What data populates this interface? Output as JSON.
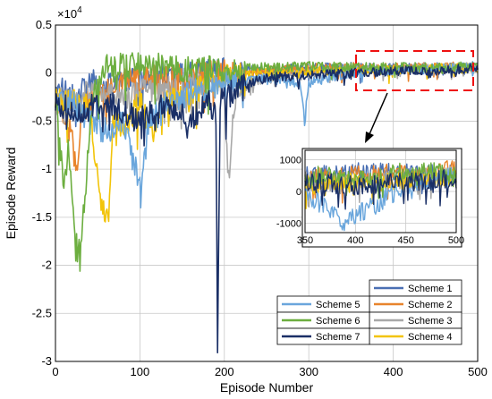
{
  "chart_data": [
    {
      "type": "line",
      "xlabel": "Episode Number",
      "ylabel": "Episode Reward",
      "y_multiplier": "×10",
      "y_multiplier_exp": "4",
      "xlim": [
        0,
        500
      ],
      "ylim": [
        -3,
        0.5
      ],
      "xticks": [
        0,
        100,
        200,
        300,
        400,
        500
      ],
      "yticks": [
        0.5,
        0,
        -0.5,
        -1,
        -1.5,
        -2,
        -2.5,
        -3
      ],
      "ytick_labels": [
        "0.5",
        "0",
        "-0.5",
        "-1",
        "-1.5",
        "-2",
        "-2.5",
        "-3"
      ],
      "grid": true,
      "legend_position": "bottom-right",
      "series": [
        {
          "name": "Scheme 1",
          "color": "#4a6fb3",
          "points": [
            [
              0,
              -0.3
            ],
            [
              8,
              -0.15
            ],
            [
              18,
              -0.25
            ],
            [
              30,
              -0.2
            ],
            [
              45,
              -0.1
            ],
            [
              60,
              -0.15
            ],
            [
              80,
              -0.05
            ],
            [
              100,
              -0.05
            ],
            [
              130,
              -0.02
            ],
            [
              160,
              0.0
            ],
            [
              180,
              0.02
            ],
            [
              200,
              0.03
            ],
            [
              250,
              0.04
            ],
            [
              300,
              0.05
            ],
            [
              350,
              0.06
            ],
            [
              400,
              0.05
            ],
            [
              450,
              0.06
            ],
            [
              500,
              0.07
            ]
          ]
        },
        {
          "name": "Scheme 2",
          "color": "#e8842c",
          "points": [
            [
              0,
              -0.2
            ],
            [
              10,
              -0.4
            ],
            [
              20,
              -0.7
            ],
            [
              25,
              -1.05
            ],
            [
              32,
              -0.4
            ],
            [
              45,
              -0.25
            ],
            [
              60,
              -0.2
            ],
            [
              80,
              -0.1
            ],
            [
              100,
              -0.05
            ],
            [
              130,
              -0.05
            ],
            [
              160,
              -0.02
            ],
            [
              200,
              0.0
            ],
            [
              250,
              0.03
            ],
            [
              300,
              0.05
            ],
            [
              350,
              0.06
            ],
            [
              400,
              0.05
            ],
            [
              450,
              0.07
            ],
            [
              500,
              0.06
            ]
          ]
        },
        {
          "name": "Scheme 3",
          "color": "#a8a8a8",
          "points": [
            [
              0,
              -0.3
            ],
            [
              20,
              -0.25
            ],
            [
              50,
              -0.2
            ],
            [
              100,
              -0.2
            ],
            [
              150,
              -0.15
            ],
            [
              180,
              -0.1
            ],
            [
              200,
              -0.15
            ],
            [
              205,
              -1.15
            ],
            [
              210,
              -0.4
            ],
            [
              220,
              -0.15
            ],
            [
              250,
              -0.05
            ],
            [
              300,
              0.0
            ],
            [
              350,
              0.04
            ],
            [
              400,
              0.04
            ],
            [
              450,
              0.05
            ],
            [
              500,
              0.06
            ]
          ]
        },
        {
          "name": "Scheme 4",
          "color": "#f2c40a",
          "points": [
            [
              0,
              -0.3
            ],
            [
              20,
              -0.3
            ],
            [
              40,
              -0.35
            ],
            [
              52,
              -1.2
            ],
            [
              58,
              -1.5
            ],
            [
              63,
              -1.45
            ],
            [
              68,
              -0.5
            ],
            [
              80,
              -0.6
            ],
            [
              100,
              -0.3
            ],
            [
              115,
              -0.6
            ],
            [
              130,
              -0.3
            ],
            [
              160,
              -0.2
            ],
            [
              200,
              -0.05
            ],
            [
              250,
              0.0
            ],
            [
              300,
              0.02
            ],
            [
              350,
              0.03
            ],
            [
              400,
              0.04
            ],
            [
              450,
              0.05
            ],
            [
              500,
              0.05
            ]
          ]
        },
        {
          "name": "Scheme 5",
          "color": "#6aa6dc",
          "points": [
            [
              0,
              -0.3
            ],
            [
              20,
              -0.3
            ],
            [
              40,
              -0.5
            ],
            [
              60,
              -0.6
            ],
            [
              80,
              -0.5
            ],
            [
              95,
              -1.0
            ],
            [
              102,
              -1.25
            ],
            [
              110,
              -0.5
            ],
            [
              130,
              -0.3
            ],
            [
              160,
              -0.2
            ],
            [
              200,
              -0.1
            ],
            [
              250,
              -0.05
            ],
            [
              290,
              -0.1
            ],
            [
              295,
              -0.5
            ],
            [
              300,
              -0.1
            ],
            [
              350,
              0.0
            ],
            [
              400,
              0.02
            ],
            [
              450,
              0.05
            ],
            [
              500,
              0.06
            ]
          ]
        },
        {
          "name": "Scheme 6",
          "color": "#6cae3f",
          "points": [
            [
              0,
              -0.3
            ],
            [
              5,
              -0.7
            ],
            [
              10,
              -1.2
            ],
            [
              15,
              -0.8
            ],
            [
              22,
              -1.6
            ],
            [
              27,
              -1.95
            ],
            [
              32,
              -1.55
            ],
            [
              38,
              -0.9
            ],
            [
              45,
              -0.2
            ],
            [
              60,
              0.05
            ],
            [
              80,
              0.08
            ],
            [
              100,
              0.08
            ],
            [
              150,
              0.05
            ],
            [
              200,
              0.05
            ],
            [
              250,
              0.06
            ],
            [
              300,
              0.07
            ],
            [
              350,
              0.06
            ],
            [
              400,
              0.06
            ],
            [
              450,
              0.06
            ],
            [
              500,
              0.07
            ]
          ]
        },
        {
          "name": "Scheme 7",
          "color": "#1a2f66",
          "points": [
            [
              0,
              -0.35
            ],
            [
              10,
              -0.35
            ],
            [
              20,
              -0.4
            ],
            [
              40,
              -0.35
            ],
            [
              60,
              -0.3
            ],
            [
              80,
              -0.4
            ],
            [
              100,
              -0.5
            ],
            [
              120,
              -0.3
            ],
            [
              140,
              -0.4
            ],
            [
              160,
              -0.5
            ],
            [
              180,
              -0.3
            ],
            [
              190,
              -0.4
            ],
            [
              192,
              -2.87
            ],
            [
              195,
              -0.3
            ],
            [
              210,
              -0.2
            ],
            [
              230,
              -0.1
            ],
            [
              250,
              -0.05
            ],
            [
              300,
              -0.02
            ],
            [
              350,
              0.0
            ],
            [
              400,
              0.02
            ],
            [
              450,
              0.03
            ],
            [
              500,
              0.05
            ]
          ]
        }
      ]
    },
    {
      "type": "line",
      "role": "inset zoom of episodes 350–500",
      "xlim": [
        350,
        500
      ],
      "ylim": [
        -1300,
        1300
      ],
      "xticks": [
        350,
        400,
        450,
        500
      ],
      "yticks": [
        1000,
        0,
        -1000
      ],
      "grid": true,
      "series": [
        {
          "name": "Scheme 1",
          "color": "#4a6fb3",
          "points": [
            [
              350,
              500
            ],
            [
              400,
              600
            ],
            [
              450,
              550
            ],
            [
              500,
              650
            ]
          ]
        },
        {
          "name": "Scheme 2",
          "color": "#e8842c",
          "points": [
            [
              350,
              400
            ],
            [
              400,
              500
            ],
            [
              450,
              600
            ],
            [
              500,
              700
            ]
          ]
        },
        {
          "name": "Scheme 3",
          "color": "#a8a8a8",
          "points": [
            [
              350,
              300
            ],
            [
              400,
              200
            ],
            [
              450,
              400
            ],
            [
              500,
              500
            ]
          ]
        },
        {
          "name": "Scheme 4",
          "color": "#f2c40a",
          "points": [
            [
              350,
              200
            ],
            [
              400,
              300
            ],
            [
              450,
              350
            ],
            [
              500,
              450
            ]
          ]
        },
        {
          "name": "Scheme 5",
          "color": "#6aa6dc",
          "points": [
            [
              350,
              0
            ],
            [
              390,
              -1000
            ],
            [
              450,
              200
            ],
            [
              500,
              500
            ]
          ]
        },
        {
          "name": "Scheme 6",
          "color": "#6cae3f",
          "points": [
            [
              350,
              500
            ],
            [
              400,
              400
            ],
            [
              450,
              600
            ],
            [
              500,
              600
            ]
          ]
        },
        {
          "name": "Scheme 7",
          "color": "#1a2f66",
          "points": [
            [
              350,
              300
            ],
            [
              400,
              200
            ],
            [
              450,
              300
            ],
            [
              500,
              400
            ]
          ]
        }
      ]
    }
  ]
}
